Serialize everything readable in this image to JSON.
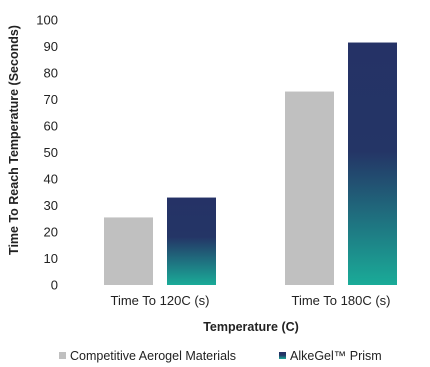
{
  "chart_data": {
    "type": "bar",
    "title": "",
    "xlabel": "Temperature (C)",
    "ylabel": "Time To Reach Temperature (Seconds)",
    "categories": [
      "Time To 120C (s)",
      "Time To 180C (s)"
    ],
    "series": [
      {
        "name": "Competitive Aerogel Materials",
        "values": [
          25.5,
          73
        ],
        "color": "#c0c0c0"
      },
      {
        "name": "AlkeGel™ Prism",
        "values": [
          33,
          91.5
        ],
        "color_top": "#253266",
        "color_bottom": "#1aab98"
      }
    ],
    "ylim": [
      0,
      100
    ],
    "yticks": [
      0,
      10,
      20,
      30,
      40,
      50,
      60,
      70,
      80,
      90,
      100
    ],
    "grid": false,
    "legend_position": "bottom-center"
  }
}
